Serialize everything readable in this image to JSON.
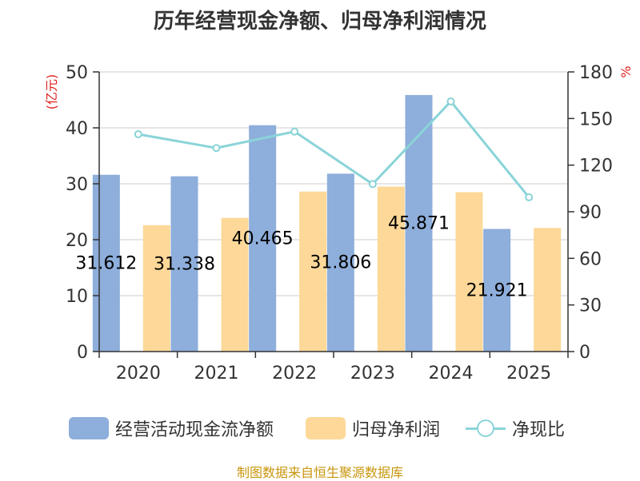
{
  "chart_data": {
    "type": "bar",
    "title": "历年经营现金净额、归母净利润情况",
    "categories": [
      "2020",
      "2021",
      "2022",
      "2023",
      "2024",
      "2025"
    ],
    "y_left_label": "(亿元)",
    "y_right_label": "%",
    "y_left_lim": [
      0,
      50
    ],
    "y_left_ticks": [
      0,
      10,
      20,
      30,
      40,
      50
    ],
    "y_right_lim": [
      0,
      180
    ],
    "y_right_ticks": [
      0,
      30,
      60,
      90,
      120,
      150,
      180
    ],
    "grid": true,
    "legend_position": "bottom",
    "series": [
      {
        "name": "经营活动现金流净额",
        "type": "bar",
        "axis": "left",
        "color": "#8eaedb",
        "values": [
          31.612,
          31.338,
          40.465,
          31.806,
          45.871,
          21.921
        ],
        "data_labels": [
          "31.612",
          "31.338",
          "40.465",
          "31.806",
          "45.871",
          "21.921"
        ]
      },
      {
        "name": "归母净利润",
        "type": "bar",
        "axis": "left",
        "color": "#fdd898",
        "values": [
          22.6,
          23.9,
          28.6,
          29.5,
          28.5,
          22.1
        ]
      },
      {
        "name": "净现比",
        "type": "line",
        "axis": "right",
        "color": "#8ad4d8",
        "values": [
          139.9,
          131.0,
          141.6,
          107.8,
          161.0,
          99.3
        ]
      }
    ]
  },
  "source": "制图数据来自恒生聚源数据库"
}
